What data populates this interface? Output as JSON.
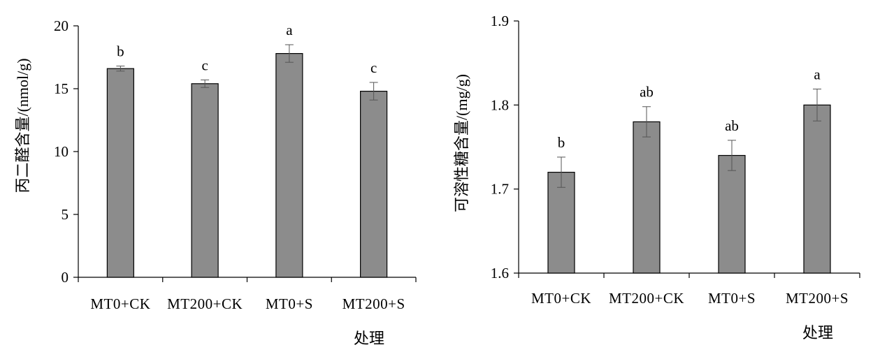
{
  "chart_data": [
    {
      "type": "bar",
      "categories": [
        "MT0+CK",
        "MT200+CK",
        "MT0+S",
        "MT200+S"
      ],
      "series": [
        {
          "values": [
            16.6,
            15.4,
            17.8,
            14.8
          ],
          "errors": [
            0.2,
            0.3,
            0.7,
            0.7
          ],
          "significance": [
            "b",
            "c",
            "a",
            "c"
          ]
        }
      ],
      "ylim": [
        0,
        20
      ],
      "yticks": [
        "0",
        "5",
        "10",
        "15",
        "20"
      ],
      "ylabel": "丙二醛含量/(nmol/g)",
      "xlabel": "处理",
      "bar_color": "#8c8c8c",
      "grid": false
    },
    {
      "type": "bar",
      "categories": [
        "MT0+CK",
        "MT200+CK",
        "MT0+S",
        "MT200+S"
      ],
      "series": [
        {
          "values": [
            1.72,
            1.78,
            1.74,
            1.8
          ],
          "errors": [
            0.018,
            0.018,
            0.018,
            0.019
          ],
          "significance": [
            "b",
            "ab",
            "ab",
            "a"
          ]
        }
      ],
      "ylim": [
        1.6,
        1.9
      ],
      "yticks": [
        "1.6",
        "1.7",
        "1.8",
        "1.9"
      ],
      "ylabel": "可溶性糖含量/(mg/g)",
      "xlabel": "处理",
      "bar_color": "#8c8c8c",
      "grid": false
    }
  ]
}
